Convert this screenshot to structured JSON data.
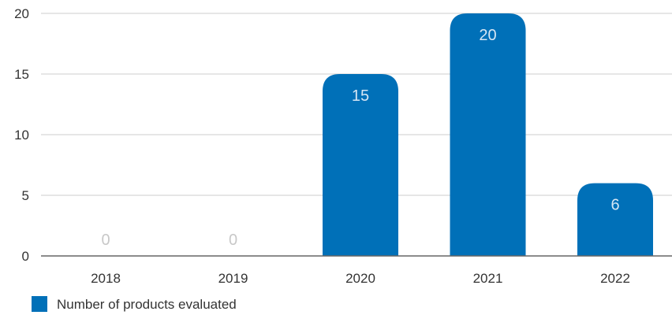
{
  "chart_data": {
    "type": "bar",
    "title": "",
    "xlabel": "",
    "ylabel": "",
    "categories": [
      "2018",
      "2019",
      "2020",
      "2021",
      "2022"
    ],
    "series": [
      {
        "name": "Number of products evaluated",
        "values": [
          0,
          0,
          15,
          20,
          6
        ],
        "color": "#0070b8"
      }
    ],
    "data_labels": [
      "0",
      "0",
      "15",
      "20",
      "6"
    ],
    "ylim": [
      0,
      20
    ],
    "yticks": [
      "0",
      "5",
      "10",
      "15",
      "20"
    ],
    "grid": true,
    "legend_position": "bottom-left",
    "colors": {
      "bar": "#0070b8",
      "grid": "#cccccc",
      "axis": "#666666",
      "label_on_bar": "#d6e6f4",
      "label_zero": "#c8c8c8"
    }
  }
}
